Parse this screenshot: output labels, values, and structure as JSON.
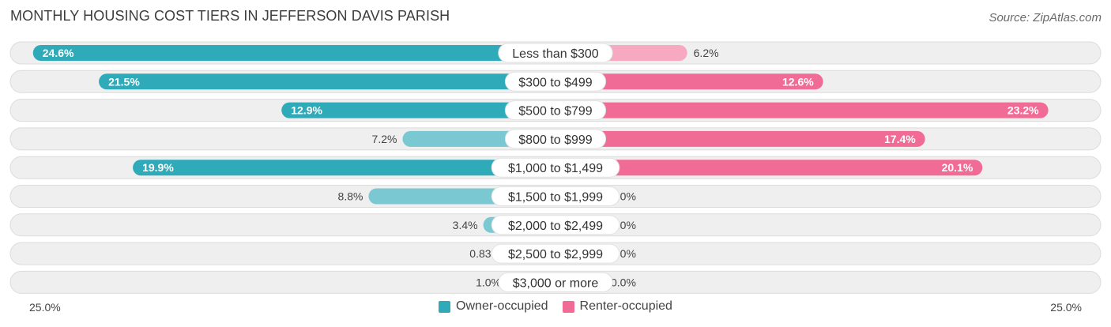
{
  "header": {
    "title": "MONTHLY HOUSING COST TIERS IN JEFFERSON DAVIS PARISH",
    "source": "Source: ZipAtlas.com"
  },
  "colors": {
    "owner_strong": "#2eaab9",
    "owner_light": "#79c8d2",
    "renter_strong": "#f06b96",
    "renter_light": "#f6a9c1",
    "row_bg": "#efefef"
  },
  "axis": {
    "left_label": "25.0%",
    "right_label": "25.0%"
  },
  "legend": {
    "owner_label": "Owner-occupied",
    "renter_label": "Renter-occupied"
  },
  "chart_data": {
    "type": "bar",
    "orientation": "diverging-horizontal",
    "xlim": [
      -25,
      25
    ],
    "categories": [
      "Less than $300",
      "$300 to $499",
      "$500 to $799",
      "$800 to $999",
      "$1,000 to $1,499",
      "$1,500 to $1,999",
      "$2,000 to $2,499",
      "$2,500 to $2,999",
      "$3,000 or more"
    ],
    "series": [
      {
        "name": "Owner-occupied",
        "values": [
          24.6,
          21.5,
          12.9,
          7.2,
          19.9,
          8.8,
          3.4,
          0.83,
          1.0
        ],
        "labels": [
          "24.6%",
          "21.5%",
          "12.9%",
          "7.2%",
          "19.9%",
          "8.8%",
          "3.4%",
          "0.83%",
          "1.0%"
        ]
      },
      {
        "name": "Renter-occupied",
        "values": [
          6.2,
          12.6,
          23.2,
          17.4,
          20.1,
          2.0,
          0.0,
          0.0,
          0.0
        ],
        "labels": [
          "6.2%",
          "12.6%",
          "23.2%",
          "17.4%",
          "20.1%",
          "2.0%",
          "0.0%",
          "0.0%",
          "0.0%"
        ]
      }
    ]
  }
}
